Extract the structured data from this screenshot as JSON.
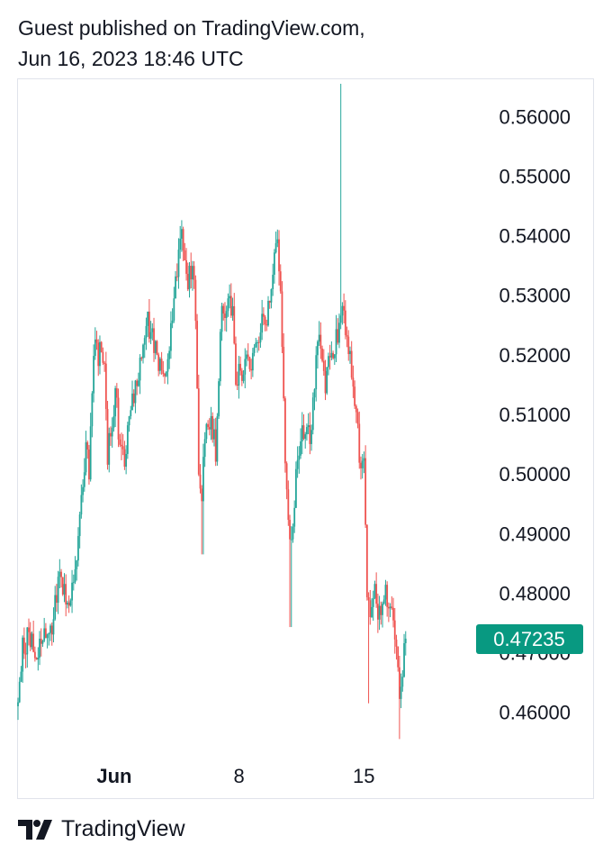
{
  "header": {
    "line1": "Guest published on TradingView.com,",
    "line2": "Jun 16, 2023 18:46 UTC"
  },
  "footer": {
    "brand": "TradingView"
  },
  "colors": {
    "up": "#26a69a",
    "down": "#ef5350",
    "wick": "#5d606b",
    "tag": "#089981",
    "border": "#e0e3eb"
  },
  "chart_data": {
    "type": "candlestick",
    "ylim": [
      0.4545,
      0.5655
    ],
    "y_ticks": [
      "0.56000",
      "0.55000",
      "0.54000",
      "0.53000",
      "0.52000",
      "0.51000",
      "0.50000",
      "0.49000",
      "0.48000",
      "0.47000",
      "0.46000"
    ],
    "x_ticks": [
      {
        "label": "Jun",
        "bold": true,
        "day": 1
      },
      {
        "label": "8",
        "bold": false,
        "day": 8
      },
      {
        "label": "15",
        "bold": false,
        "day": 15
      }
    ],
    "x_range_days": [
      -4.4,
      21.2
    ],
    "last_price": "0.47235",
    "last_price_value": 0.47235,
    "path": [
      [
        -4.4,
        0.461
      ],
      [
        -4.2,
        0.47
      ],
      [
        -3.8,
        0.473
      ],
      [
        -3.5,
        0.47
      ],
      [
        -3.0,
        0.472
      ],
      [
        -2.6,
        0.473
      ],
      [
        -2.3,
        0.478
      ],
      [
        -2.0,
        0.484
      ],
      [
        -1.8,
        0.48
      ],
      [
        -1.5,
        0.478
      ],
      [
        -1.2,
        0.483
      ],
      [
        -1.0,
        0.49
      ],
      [
        -0.8,
        0.497
      ],
      [
        -0.6,
        0.504
      ],
      [
        -0.4,
        0.5
      ],
      [
        -0.3,
        0.51
      ],
      [
        -0.1,
        0.522
      ],
      [
        0.1,
        0.52
      ],
      [
        0.3,
        0.522
      ],
      [
        0.5,
        0.515
      ],
      [
        0.6,
        0.503
      ],
      [
        0.9,
        0.508
      ],
      [
        1.1,
        0.518
      ],
      [
        1.2,
        0.507
      ],
      [
        1.4,
        0.505
      ],
      [
        1.6,
        0.503
      ],
      [
        1.9,
        0.51
      ],
      [
        2.1,
        0.513
      ],
      [
        2.4,
        0.517
      ],
      [
        2.6,
        0.52
      ],
      [
        2.8,
        0.526
      ],
      [
        3.1,
        0.523
      ],
      [
        3.3,
        0.522
      ],
      [
        3.5,
        0.519
      ],
      [
        3.7,
        0.516
      ],
      [
        4.0,
        0.52
      ],
      [
        4.2,
        0.525
      ],
      [
        4.5,
        0.534
      ],
      [
        4.7,
        0.541
      ],
      [
        4.9,
        0.537
      ],
      [
        5.1,
        0.531
      ],
      [
        5.4,
        0.536
      ],
      [
        5.6,
        0.524
      ],
      [
        5.7,
        0.502
      ],
      [
        5.9,
        0.497
      ],
      [
        6.1,
        0.505
      ],
      [
        6.3,
        0.51
      ],
      [
        6.5,
        0.507
      ],
      [
        6.7,
        0.504
      ],
      [
        6.9,
        0.52
      ],
      [
        7.1,
        0.529
      ],
      [
        7.3,
        0.527
      ],
      [
        7.5,
        0.53
      ],
      [
        7.7,
        0.525
      ],
      [
        7.8,
        0.514
      ],
      [
        8.0,
        0.517
      ],
      [
        8.2,
        0.516
      ],
      [
        8.5,
        0.521
      ],
      [
        8.7,
        0.518
      ],
      [
        8.9,
        0.523
      ],
      [
        9.1,
        0.521
      ],
      [
        9.3,
        0.526
      ],
      [
        9.5,
        0.525
      ],
      [
        9.8,
        0.531
      ],
      [
        10.0,
        0.537
      ],
      [
        10.2,
        0.538
      ],
      [
        10.4,
        0.525
      ],
      [
        10.6,
        0.499
      ],
      [
        10.8,
        0.492
      ],
      [
        10.9,
        0.485
      ],
      [
        11.1,
        0.496
      ],
      [
        11.3,
        0.502
      ],
      [
        11.5,
        0.507
      ],
      [
        11.7,
        0.506
      ],
      [
        12.0,
        0.507
      ],
      [
        12.2,
        0.513
      ],
      [
        12.4,
        0.524
      ],
      [
        12.6,
        0.521
      ],
      [
        12.8,
        0.514
      ],
      [
        13.0,
        0.518
      ],
      [
        13.2,
        0.52
      ],
      [
        13.4,
        0.522
      ],
      [
        13.7,
        0.525
      ],
      [
        13.9,
        0.529
      ],
      [
        14.0,
        0.522
      ],
      [
        14.2,
        0.52
      ],
      [
        14.4,
        0.514
      ],
      [
        14.6,
        0.51
      ],
      [
        14.8,
        0.502
      ],
      [
        15.0,
        0.503
      ],
      [
        15.2,
        0.478
      ],
      [
        15.4,
        0.477
      ],
      [
        15.6,
        0.48
      ],
      [
        15.8,
        0.475
      ],
      [
        16.0,
        0.478
      ],
      [
        16.2,
        0.481
      ],
      [
        16.4,
        0.478
      ],
      [
        16.6,
        0.477
      ],
      [
        16.8,
        0.472
      ],
      [
        17.0,
        0.463
      ],
      [
        17.2,
        0.468
      ],
      [
        17.35,
        0.47235
      ]
    ],
    "spikes": [
      {
        "day": 5.95,
        "low": 0.4865
      },
      {
        "day": 10.9,
        "low": 0.4743
      },
      {
        "day": 13.7,
        "high": 0.5655
      },
      {
        "day": 15.25,
        "low": 0.4615
      },
      {
        "day": 17.0,
        "low": 0.4555
      }
    ]
  }
}
